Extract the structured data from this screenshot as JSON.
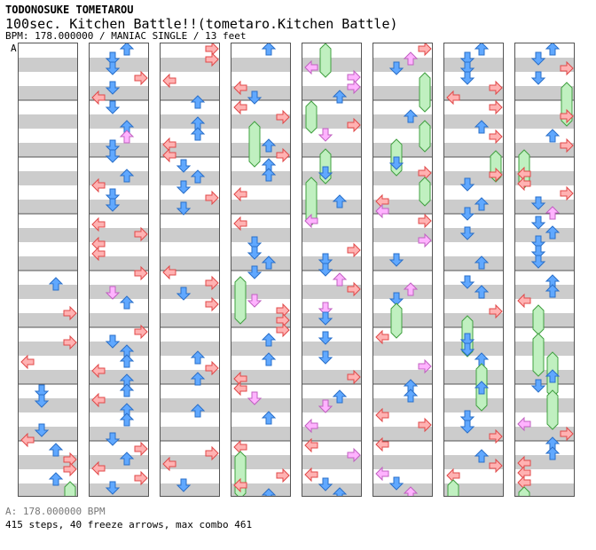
{
  "header": {
    "author": "TODONOSUKE TOMETAROU",
    "title": "100sec. Kitchen Battle!!(tometaro.Kitchen Battle)",
    "info": "BPM: 178.000000 / MANIAC SINGLE / 13 feet"
  },
  "bpm_marker": "A",
  "footer": {
    "bpm_line": "A: 178.000000 BPM",
    "stats_line": "415 steps, 40 freeze arrows, max combo 461"
  },
  "colors": {
    "band_gray": "#cccccc",
    "border": "#555555",
    "left_right_arrow": "#ffb2b2",
    "left_right_outline": "#e04848",
    "up_down_arrow": "#60a8ff",
    "up_down_outline": "#2a6fc8",
    "pink_arrow": "#ffb3ff",
    "pink_outline": "#c060c0",
    "freeze_body": "#c0f0c0",
    "freeze_outline": "#40a040",
    "bright_green": "#33dd33"
  },
  "icons": {
    "left": "arrow-left-icon",
    "down": "arrow-down-icon",
    "up": "arrow-up-icon",
    "right": "arrow-right-icon",
    "freeze": "freeze-hold-icon"
  },
  "chart_data": {
    "type": "step-chart",
    "mode": "MANIAC SINGLE",
    "bpm": 178,
    "difficulty_feet": 13,
    "steps": 415,
    "freeze_arrows": 40,
    "max_combo": 461,
    "columns": 8,
    "measures_per_column": 8
  }
}
